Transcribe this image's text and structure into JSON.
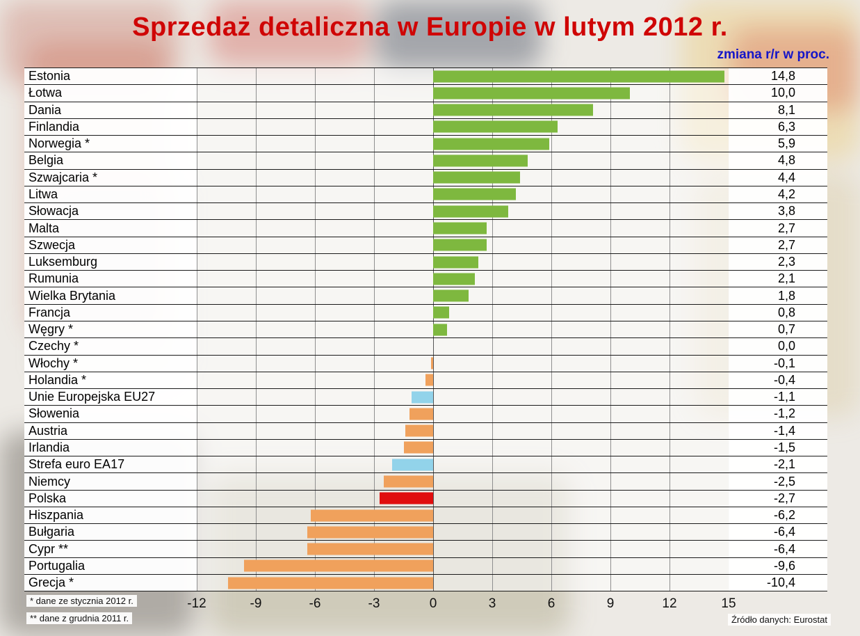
{
  "title": "Sprzedaż detaliczna w Europie w lutym 2012 r.",
  "subtitle": "zmiana r/r w proc.",
  "footnotes": [
    "* dane ze stycznia 2012 r.",
    "** dane z grudnia 2011 r."
  ],
  "source": "Źródło danych: Eurostat",
  "text_colors": {
    "title": "#cf0505",
    "subtitle": "#1515c8"
  },
  "chart_data": {
    "type": "bar",
    "orientation": "horizontal",
    "title": "Sprzedaż detaliczna w Europie w lutym 2012 r.",
    "unit_label": "zmiana r/r w proc.",
    "xlim": [
      -12,
      15
    ],
    "xticks": [
      -12,
      -9,
      -6,
      -3,
      0,
      3,
      6,
      9,
      12,
      15
    ],
    "grid": true,
    "colors": {
      "positive": "#7eb83f",
      "negative": "#f0a15c",
      "aggregate": "#92d3ea",
      "poland": "#e00e0e"
    },
    "categories": [
      "Estonia",
      "Łotwa",
      "Dania",
      "Finlandia",
      "Norwegia *",
      "Belgia",
      "Szwajcaria *",
      "Litwa",
      "Słowacja",
      "Malta",
      "Szwecja",
      "Luksemburg",
      "Rumunia",
      "Wielka Brytania",
      "Francja",
      "Węgry *",
      "Czechy *",
      "Włochy *",
      "Holandia *",
      "Unie Europejska EU27",
      "Słowenia",
      "Austria",
      "Irlandia",
      "Strefa euro EA17",
      "Niemcy",
      "Polska",
      "Hiszpania",
      "Bułgaria",
      "Cypr **",
      "Portugalia",
      "Grecja *"
    ],
    "values": [
      14.8,
      10.0,
      8.1,
      6.3,
      5.9,
      4.8,
      4.4,
      4.2,
      3.8,
      2.7,
      2.7,
      2.3,
      2.1,
      1.8,
      0.8,
      0.7,
      0.0,
      -0.1,
      -0.4,
      -1.1,
      -1.2,
      -1.4,
      -1.5,
      -2.1,
      -2.5,
      -2.7,
      -6.2,
      -6.4,
      -6.4,
      -9.6,
      -10.4
    ],
    "value_labels": [
      "14,8",
      "10,0",
      "8,1",
      "6,3",
      "5,9",
      "4,8",
      "4,4",
      "4,2",
      "3,8",
      "2,7",
      "2,7",
      "2,3",
      "2,1",
      "1,8",
      "0,8",
      "0,7",
      "0,0",
      "-0,1",
      "-0,4",
      "-1,1",
      "-1,2",
      "-1,4",
      "-1,5",
      "-2,1",
      "-2,5",
      "-2,7",
      "-6,2",
      "-6,4",
      "-6,4",
      "-9,6",
      "-10,4"
    ],
    "bar_colors": [
      "positive",
      "positive",
      "positive",
      "positive",
      "positive",
      "positive",
      "positive",
      "positive",
      "positive",
      "positive",
      "positive",
      "positive",
      "positive",
      "positive",
      "positive",
      "positive",
      "none",
      "negative",
      "negative",
      "aggregate",
      "negative",
      "negative",
      "negative",
      "aggregate",
      "negative",
      "poland",
      "negative",
      "negative",
      "negative",
      "negative",
      "negative"
    ]
  }
}
